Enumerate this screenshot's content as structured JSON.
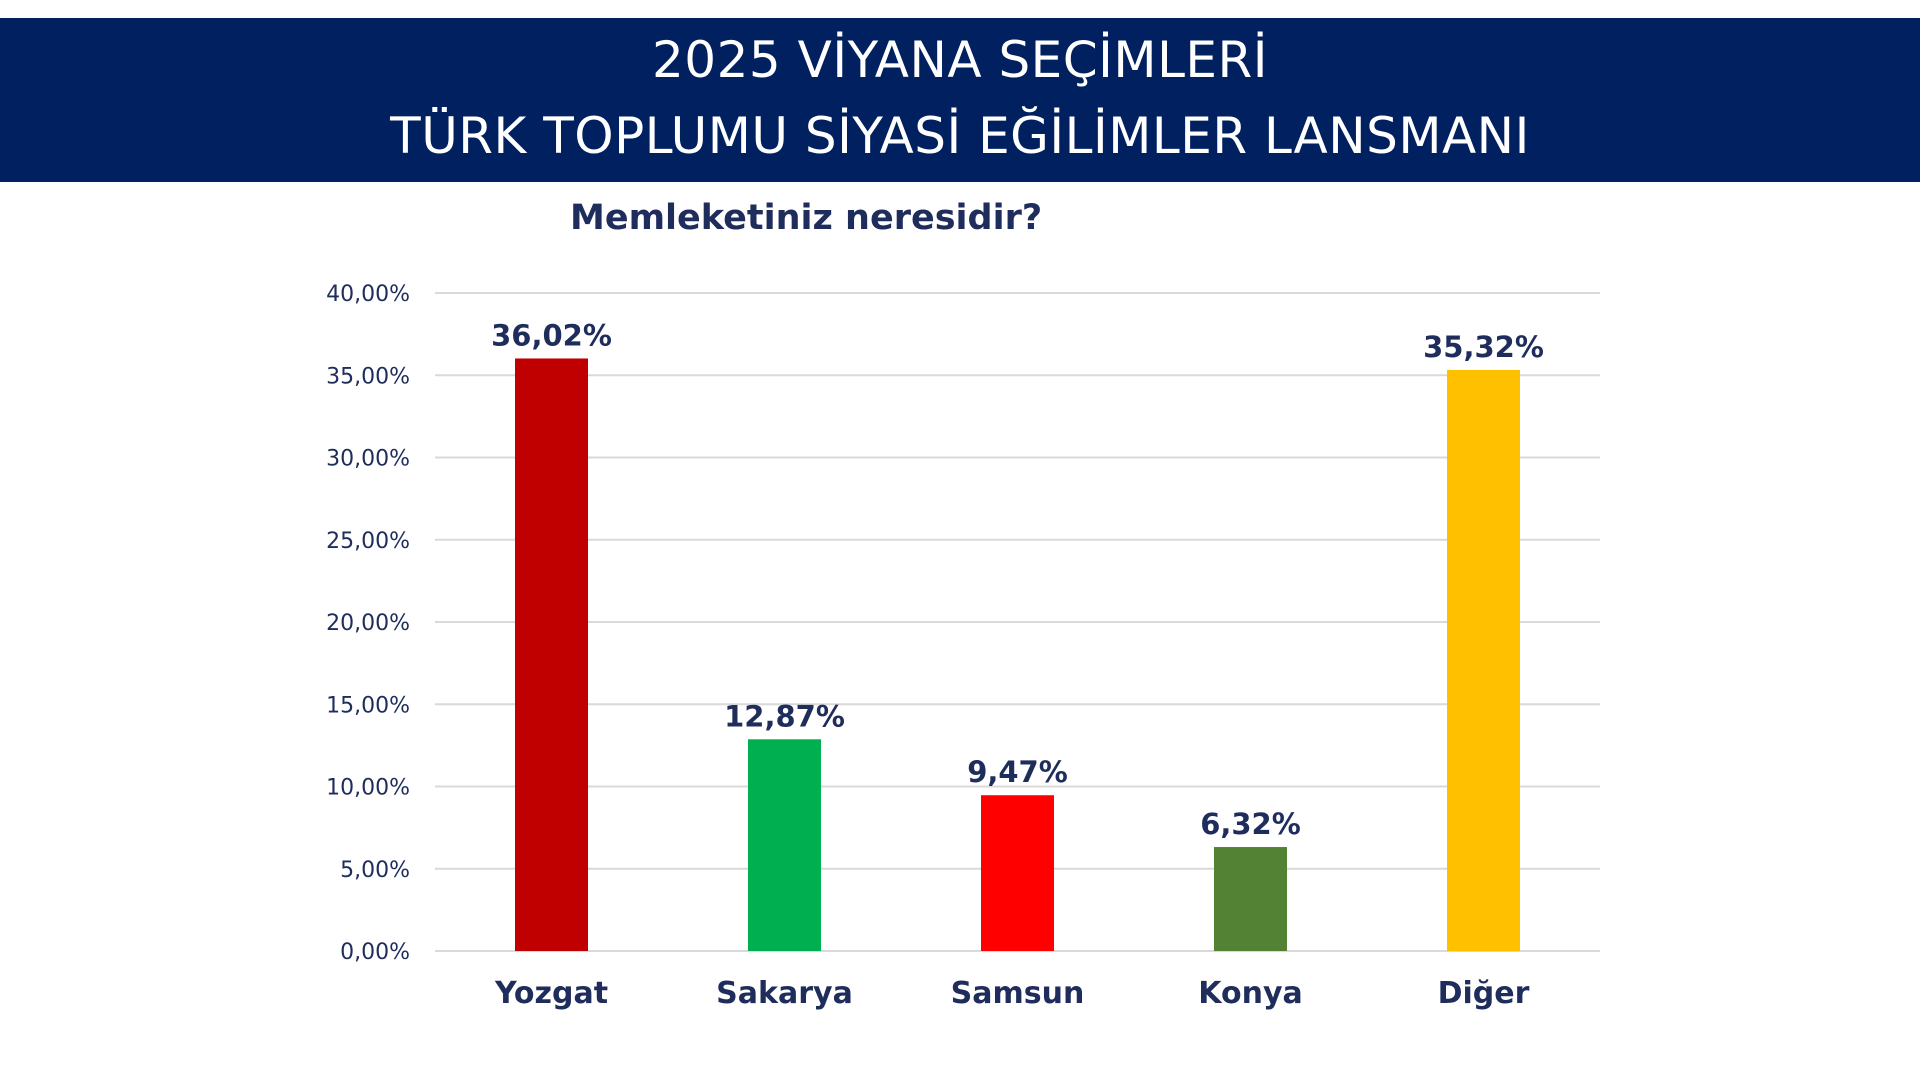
{
  "header": {
    "line1": "2025 VİYANA SEÇİMLERİ",
    "line2": "TÜRK TOPLUMU SİYASİ EĞİLİMLER LANSMANI"
  },
  "chart_data": {
    "type": "bar",
    "title": "Memleketiniz neresidir?",
    "categories": [
      "Yozgat",
      "Sakarya",
      "Samsun",
      "Konya",
      "Diğer"
    ],
    "values": [
      36.02,
      12.87,
      9.47,
      6.32,
      35.32
    ],
    "data_labels": [
      "36,02%",
      "12,87%",
      "9,47%",
      "6,32%",
      "35,32%"
    ],
    "colors": [
      "#C00000",
      "#00B050",
      "#FF0000",
      "#548235",
      "#FFC000"
    ],
    "ylim": [
      0,
      40
    ],
    "yticks": [
      0,
      5,
      10,
      15,
      20,
      25,
      30,
      35,
      40
    ],
    "ytick_labels": [
      "0,00%",
      "5,00%",
      "10,00%",
      "15,00%",
      "20,00%",
      "25,00%",
      "30,00%",
      "35,00%",
      "40,00%"
    ],
    "grid": true,
    "legend": "none",
    "xlabel": "",
    "ylabel": ""
  }
}
